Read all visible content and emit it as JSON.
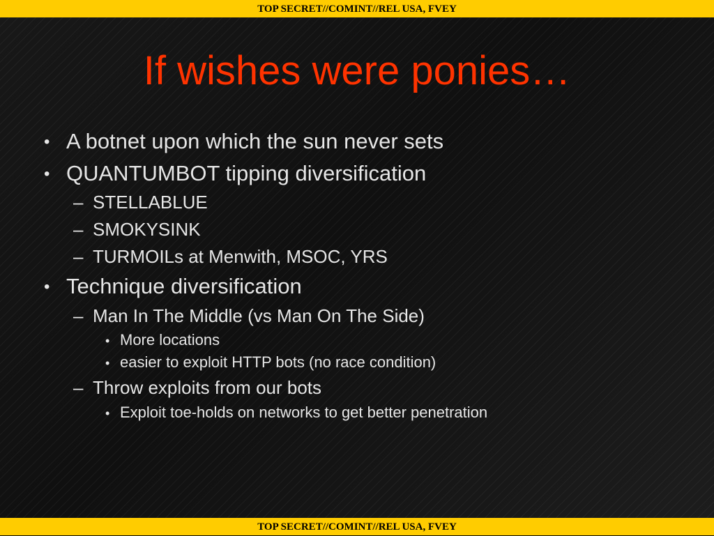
{
  "classification": "TOP SECRET//COMINT//REL USA, FVEY",
  "slide": {
    "title": "If wishes were ponies…",
    "bullets": [
      "A botnet upon which the sun never sets",
      "QUANTUMBOT tipping diversification",
      "STELLABLUE",
      "SMOKYSINK",
      "TURMOILs at Menwith, MSOC, YRS",
      "Technique diversification",
      "Man In The Middle (vs Man On The Side)",
      "More locations",
      "easier to exploit HTTP bots (no race condition)",
      "Throw exploits from our bots",
      "Exploit toe-holds on networks to get better penetration"
    ],
    "markers": {
      "level1": "•",
      "level2": "–",
      "level3": "•"
    }
  },
  "colors": {
    "banner": "#ffcc00",
    "title": "#ff3300",
    "text": "#e6e6e6",
    "background": "#111111"
  }
}
